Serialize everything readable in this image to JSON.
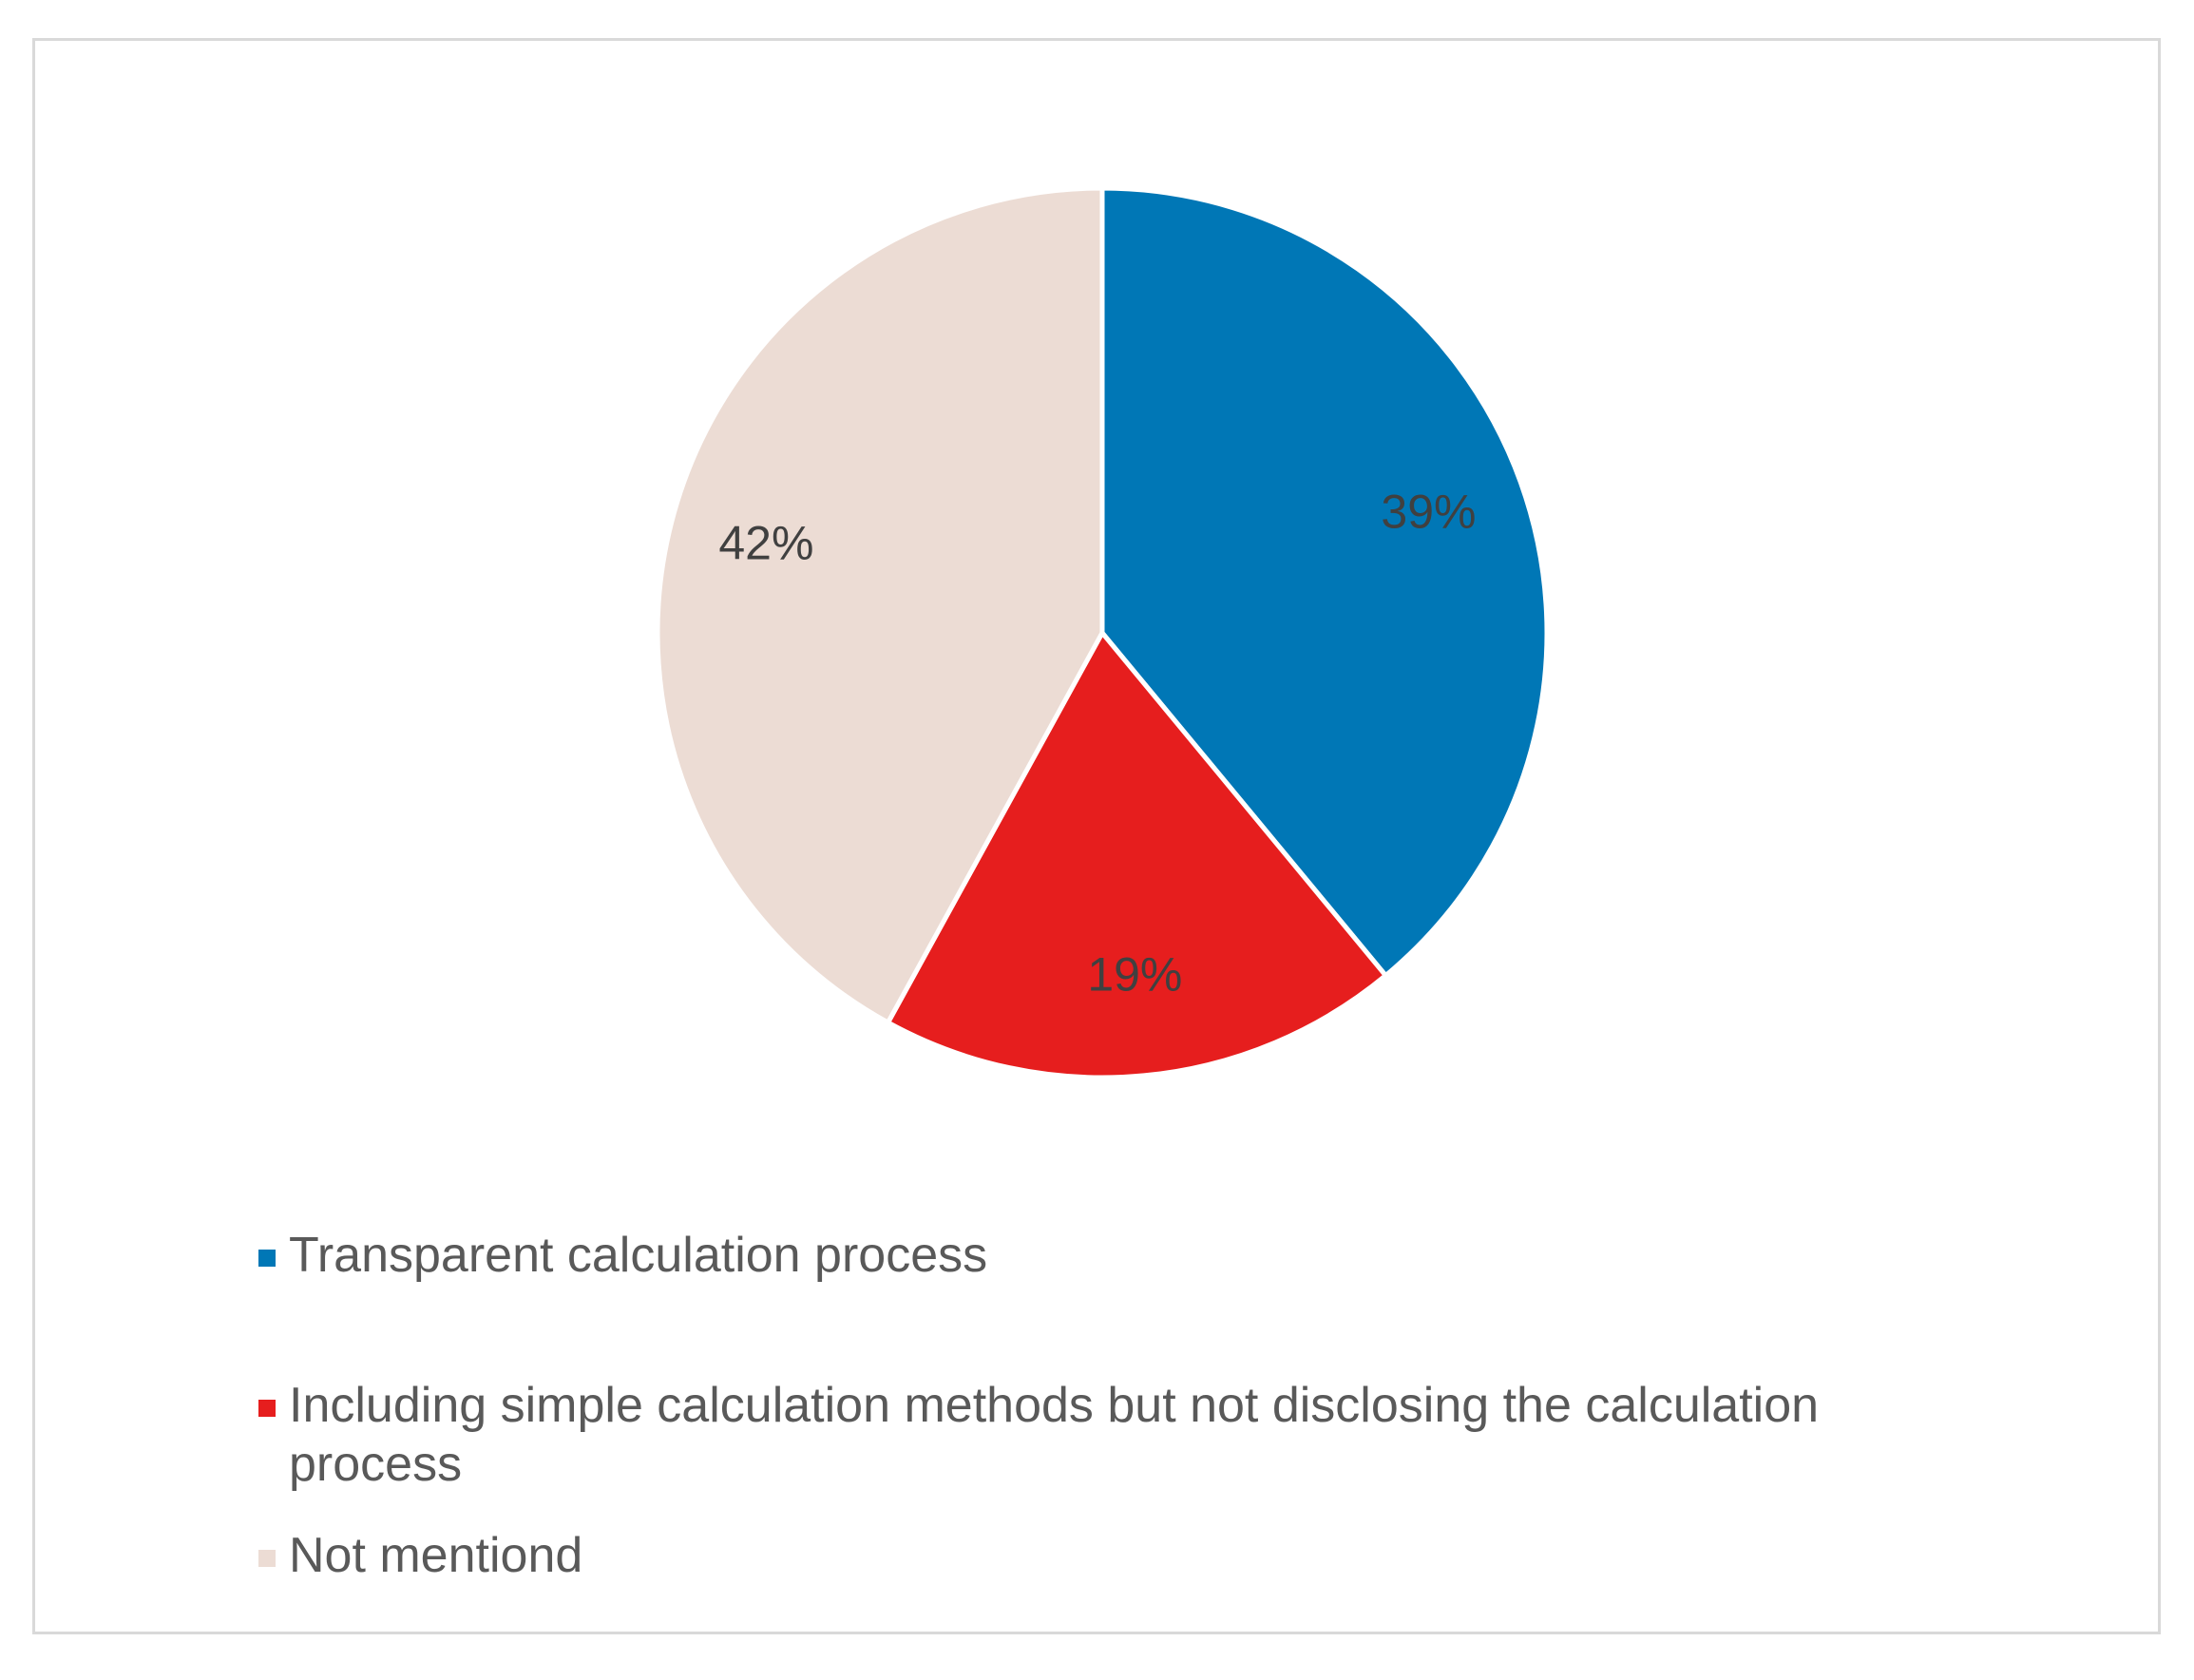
{
  "chart_data": {
    "type": "pie",
    "title": "",
    "slices": [
      {
        "label": "Transparent calculation process",
        "value": 39,
        "value_label": "39%",
        "color": "#0077b6"
      },
      {
        "label": "Including simple calculation methods but not disclosing the calculation process",
        "value": 19,
        "value_label": "19%",
        "color": "#e61e1e"
      },
      {
        "label": "Not mentiond",
        "value": 42,
        "value_label": "42%",
        "color": "#ecdcd4"
      }
    ],
    "start_angle": "12 o'clock",
    "direction": "clockwise",
    "legend_position": "bottom"
  }
}
